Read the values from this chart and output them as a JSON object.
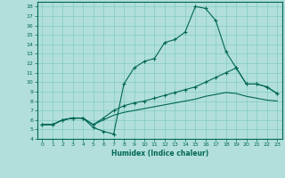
{
  "xlabel": "Humidex (Indice chaleur)",
  "background_color": "#b2dfdb",
  "grid_color": "#80cbc4",
  "line_color": "#006655",
  "xlim": [
    -0.5,
    23.5
  ],
  "ylim": [
    4,
    18.5
  ],
  "xticks": [
    0,
    1,
    2,
    3,
    4,
    5,
    6,
    7,
    8,
    9,
    10,
    11,
    12,
    13,
    14,
    15,
    16,
    17,
    18,
    19,
    20,
    21,
    22,
    23
  ],
  "yticks": [
    4,
    5,
    6,
    7,
    8,
    9,
    10,
    11,
    12,
    13,
    14,
    15,
    16,
    17,
    18
  ],
  "line1_x": [
    0,
    1,
    2,
    3,
    4,
    5,
    6,
    7,
    8,
    9,
    10,
    11,
    12,
    13,
    14,
    15,
    16,
    17,
    18,
    19,
    20,
    21,
    22,
    23
  ],
  "line1_y": [
    5.5,
    5.5,
    6.0,
    6.2,
    6.2,
    5.2,
    4.8,
    4.5,
    9.8,
    11.5,
    12.2,
    12.5,
    14.2,
    14.5,
    15.3,
    18.0,
    17.8,
    16.5,
    13.2,
    11.5,
    9.8,
    9.8,
    9.5,
    8.8
  ],
  "line2_x": [
    0,
    1,
    2,
    3,
    4,
    5,
    6,
    7,
    8,
    9,
    10,
    11,
    12,
    13,
    14,
    15,
    16,
    17,
    18,
    19,
    20,
    21,
    22,
    23
  ],
  "line2_y": [
    5.5,
    5.5,
    6.0,
    6.2,
    6.2,
    5.5,
    6.2,
    7.0,
    7.5,
    7.8,
    8.0,
    8.3,
    8.6,
    8.9,
    9.2,
    9.5,
    10.0,
    10.5,
    11.0,
    11.5,
    9.8,
    9.8,
    9.5,
    8.8
  ],
  "line3_x": [
    0,
    1,
    2,
    3,
    4,
    5,
    6,
    7,
    8,
    9,
    10,
    11,
    12,
    13,
    14,
    15,
    16,
    17,
    18,
    19,
    20,
    21,
    22,
    23
  ],
  "line3_y": [
    5.5,
    5.5,
    6.0,
    6.2,
    6.2,
    5.5,
    6.0,
    6.5,
    6.8,
    7.0,
    7.2,
    7.4,
    7.6,
    7.8,
    8.0,
    8.2,
    8.5,
    8.7,
    8.9,
    8.8,
    8.5,
    8.3,
    8.1,
    8.0
  ]
}
